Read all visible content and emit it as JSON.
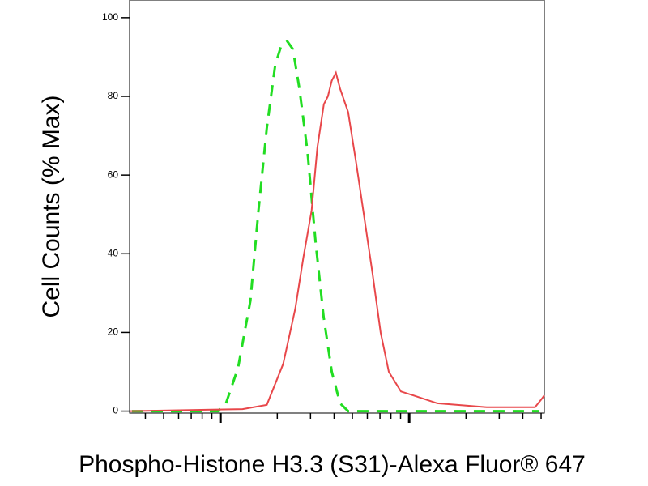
{
  "chart_data": {
    "type": "line",
    "x_label": "Phospho-Histone H3.3 (S31)-Alexa Fluor® 647",
    "y_label": "Cell Counts (% Max)",
    "xscale": "log",
    "xlim": [
      33,
      5200
    ],
    "ylim": [
      -0.5,
      104.5
    ],
    "xticks": [
      100,
      1000
    ],
    "xminorticks": [
      40,
      50,
      60,
      70,
      80,
      90,
      200,
      300,
      400,
      500,
      600,
      700,
      800,
      900,
      2000,
      3000,
      4000,
      5000
    ],
    "yticks": [
      0,
      20,
      40,
      60,
      80,
      100
    ],
    "series": [
      {
        "color": "#22dd22",
        "dashed": true,
        "x": [
          34,
          97,
          107,
          124,
          144,
          159,
          176,
          195,
          210,
          226,
          242,
          262,
          289,
          319,
          352,
          389,
          430,
          475,
          2570,
          4900
        ],
        "values": [
          0,
          0,
          2,
          11,
          28,
          51,
          72,
          88,
          93,
          94,
          92,
          82,
          66,
          43,
          24,
          10,
          2,
          0,
          0,
          0
        ]
      },
      {
        "color": "#e8474a",
        "dashed": false,
        "x": [
          33,
          131,
          176,
          215,
          249,
          275,
          304,
          326,
          353,
          371,
          389,
          409,
          430,
          475,
          524,
          579,
          639,
          706,
          780,
          904,
          1050,
          1410,
          2570,
          4640,
          5020,
          5200
        ],
        "values": [
          0,
          0.5,
          1.6,
          12,
          26,
          39,
          51,
          67,
          78,
          80,
          84,
          86,
          82,
          76,
          63,
          49,
          35,
          20,
          10,
          5,
          4,
          2,
          1,
          1,
          3,
          4
        ]
      }
    ]
  }
}
